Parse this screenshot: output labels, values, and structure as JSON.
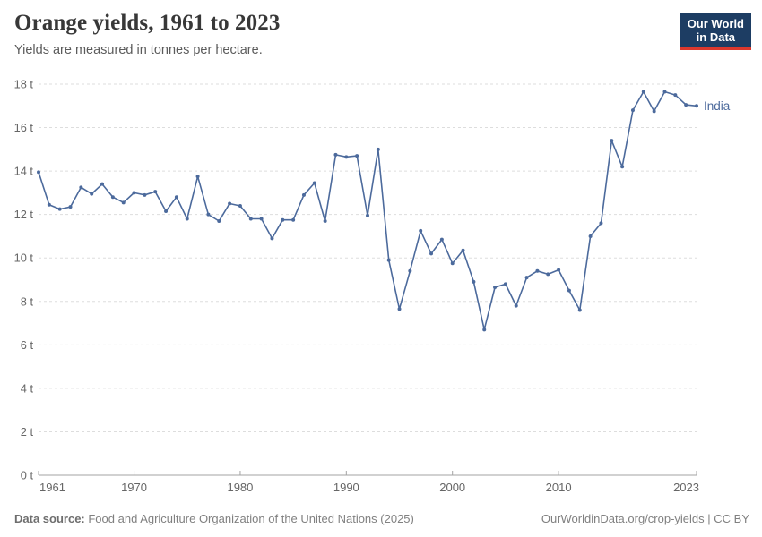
{
  "header": {
    "title": "Orange yields, 1961 to 2023",
    "subtitle": "Yields are measured in tonnes per hectare."
  },
  "logo": {
    "line1": "Our World",
    "line2": "in Data"
  },
  "footer": {
    "source_label": "Data source:",
    "source_text": " Food and Agriculture Organization of the United Nations (2025)",
    "rights": "OurWorldinData.org/crop-yields | CC BY"
  },
  "colors": {
    "line": "#4C6A9C",
    "grid": "#dddddd",
    "axis": "#a3a3a3",
    "tick_label": "#666666",
    "logo_bg": "#1d3d63",
    "logo_red": "#dc382d"
  },
  "chart_data": {
    "type": "line",
    "title": "Orange yields, 1961 to 2023",
    "ylabel": "",
    "xlabel": "",
    "unit": "tonnes per hectare",
    "ylim": [
      0,
      18
    ],
    "yticks": [
      0,
      2,
      4,
      6,
      8,
      10,
      12,
      14,
      16,
      18
    ],
    "ytick_labels": [
      "0 t",
      "2 t",
      "4 t",
      "6 t",
      "8 t",
      "10 t",
      "12 t",
      "14 t",
      "16 t",
      "18 t"
    ],
    "xlim": [
      1961,
      2023
    ],
    "xticks": [
      1961,
      1970,
      1980,
      1990,
      2000,
      2010,
      2023
    ],
    "xtick_labels": [
      "1961",
      "1970",
      "1980",
      "1990",
      "2000",
      "2010",
      "2023"
    ],
    "grid": "horizontal-dashed",
    "legend": "inline-end-label",
    "series": [
      {
        "name": "India",
        "x": [
          1961,
          1962,
          1963,
          1964,
          1965,
          1966,
          1967,
          1968,
          1969,
          1970,
          1971,
          1972,
          1973,
          1974,
          1975,
          1976,
          1977,
          1978,
          1979,
          1980,
          1981,
          1982,
          1983,
          1984,
          1985,
          1986,
          1987,
          1988,
          1989,
          1990,
          1991,
          1992,
          1993,
          1994,
          1995,
          1996,
          1997,
          1998,
          1999,
          2000,
          2001,
          2002,
          2003,
          2004,
          2005,
          2006,
          2007,
          2008,
          2009,
          2010,
          2011,
          2012,
          2013,
          2014,
          2015,
          2016,
          2017,
          2018,
          2019,
          2020,
          2021,
          2022,
          2023
        ],
        "values": [
          13.95,
          12.45,
          12.25,
          12.35,
          13.25,
          12.95,
          13.4,
          12.8,
          12.55,
          13.0,
          12.9,
          13.05,
          12.15,
          12.8,
          11.8,
          13.75,
          12.0,
          11.7,
          12.5,
          12.4,
          11.8,
          11.8,
          10.9,
          11.75,
          11.75,
          12.9,
          13.45,
          11.7,
          14.75,
          14.65,
          14.7,
          11.95,
          15.0,
          9.9,
          7.65,
          9.4,
          11.25,
          10.2,
          10.85,
          9.75,
          10.35,
          8.9,
          6.7,
          8.65,
          8.8,
          7.8,
          9.1,
          9.4,
          9.25,
          9.45,
          8.5,
          7.6,
          11.0,
          11.6,
          15.4,
          14.2,
          16.8,
          17.65,
          16.75,
          17.65,
          17.5,
          17.05,
          17.0
        ]
      }
    ]
  }
}
